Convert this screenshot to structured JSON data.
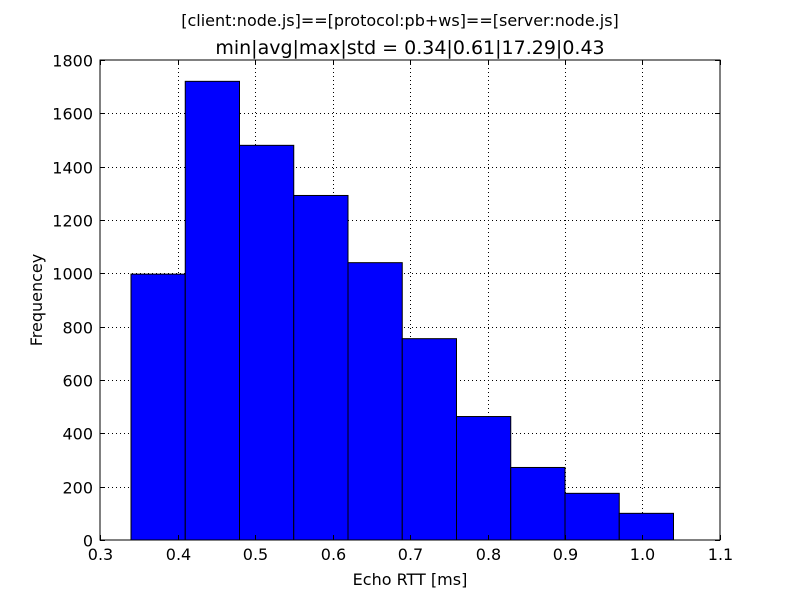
{
  "chart_data": {
    "type": "bar",
    "suptitle": "[client:node.js]==[protocol:pb+ws]==[server:node.js]",
    "title": "min|avg|max|std = 0.34|0.61|17.29|0.43",
    "xlabel": "Echo RTT [ms]",
    "ylabel": "Frequencey",
    "xlim": [
      0.3,
      1.1
    ],
    "ylim": [
      0,
      1800
    ],
    "xticks": [
      "0.3",
      "0.4",
      "0.5",
      "0.6",
      "0.7",
      "0.8",
      "0.9",
      "1.0",
      "1.1"
    ],
    "yticks": [
      "0",
      "200",
      "400",
      "600",
      "800",
      "1000",
      "1200",
      "1400",
      "1600",
      "1800"
    ],
    "grid": true,
    "bar_color": "#0000ff",
    "bins": [
      {
        "x0": 0.34,
        "x1": 0.41,
        "value": 997
      },
      {
        "x0": 0.41,
        "x1": 0.48,
        "value": 1720
      },
      {
        "x0": 0.48,
        "x1": 0.55,
        "value": 1480
      },
      {
        "x0": 0.55,
        "x1": 0.62,
        "value": 1292
      },
      {
        "x0": 0.62,
        "x1": 0.69,
        "value": 1040
      },
      {
        "x0": 0.69,
        "x1": 0.76,
        "value": 755
      },
      {
        "x0": 0.76,
        "x1": 0.83,
        "value": 463
      },
      {
        "x0": 0.83,
        "x1": 0.9,
        "value": 272
      },
      {
        "x0": 0.9,
        "x1": 0.97,
        "value": 175
      },
      {
        "x0": 0.97,
        "x1": 1.04,
        "value": 100
      }
    ]
  }
}
